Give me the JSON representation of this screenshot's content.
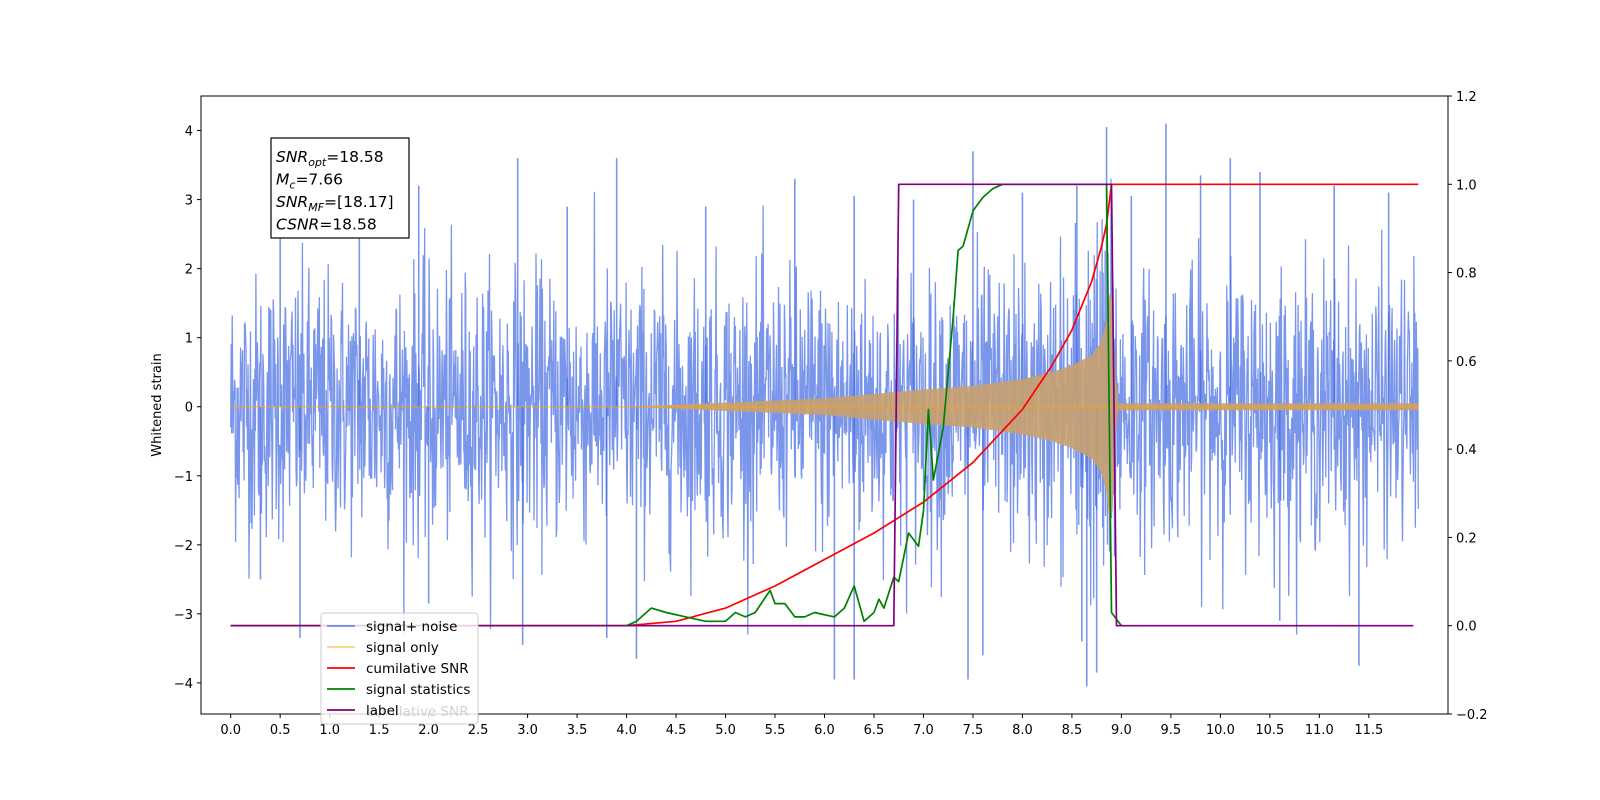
{
  "chart_data": {
    "type": "line",
    "ylabel": "Whitened strain",
    "x_ticks": [
      "0.0",
      "0.5",
      "1.0",
      "1.5",
      "2.0",
      "2.5",
      "3.0",
      "3.5",
      "4.0",
      "4.5",
      "5.0",
      "5.5",
      "6.0",
      "6.5",
      "7.0",
      "7.5",
      "8.0",
      "8.5",
      "9.0",
      "9.5",
      "10.0",
      "10.5",
      "11.0",
      "11.5"
    ],
    "xlim": [
      -0.3,
      12.3
    ],
    "left_axis": {
      "ylim": [
        -4.45,
        4.5
      ],
      "ticks": [
        4,
        3,
        2,
        1,
        0,
        -1,
        -2,
        -3,
        -4
      ],
      "tick_labels": [
        "4",
        "3",
        "2",
        "1",
        "0",
        "−1",
        "−2",
        "−3",
        "−4"
      ]
    },
    "right_axis": {
      "ylim": [
        -0.2,
        1.2
      ],
      "ticks": [
        1.2,
        1.0,
        0.8,
        0.6,
        0.4,
        0.2,
        0.0,
        -0.2
      ],
      "tick_labels": [
        "1.2",
        "1.0",
        "0.8",
        "0.6",
        "0.4",
        "0.2",
        "0.0",
        "−0.2"
      ]
    },
    "annotation": {
      "lines": [
        {
          "sym": "SNR",
          "sub": "opt",
          "val": "=18.58"
        },
        {
          "sym": "M",
          "sub": "c",
          "val": "=7.66"
        },
        {
          "sym": "SNR",
          "sub": "MF",
          "val": "=[18.17]"
        },
        {
          "sym": "CSNR",
          "sub": "",
          "val": "=18.58"
        }
      ]
    },
    "legend": {
      "position": "lower-left",
      "entries": [
        {
          "label": "signal+ noise",
          "color": "#4169e1"
        },
        {
          "label": "signal only",
          "color": "#ffa500"
        },
        {
          "label": "cumilative SNR",
          "color": "#ff0000"
        },
        {
          "label": "signal statistics",
          "color": "#008000"
        },
        {
          "label": "label",
          "color": "#800080"
        }
      ],
      "ghost_text": "cumilative SNR"
    },
    "series": [
      {
        "name": "signal+ noise",
        "color": "#4169e1",
        "opacity": 0.7,
        "axis": "left",
        "x_range": [
          0.0,
          12.0
        ],
        "noise_sigma": 1.0,
        "envelope_x": [
          0.0,
          4.0,
          6.0,
          7.0,
          7.5,
          8.0,
          8.3,
          8.5,
          8.7,
          8.8,
          8.85,
          8.9,
          8.95,
          12.0
        ],
        "envelope_y": [
          0.0,
          0.0,
          0.12,
          0.25,
          0.3,
          0.4,
          0.5,
          0.6,
          0.75,
          0.95,
          1.25,
          1.9,
          0.05,
          0.05
        ],
        "peaks": [
          [
            0.3,
            -2.5
          ],
          [
            0.5,
            2.8
          ],
          [
            0.7,
            -3.35
          ],
          [
            1.3,
            2.8
          ],
          [
            1.9,
            3.2
          ],
          [
            2.0,
            -2.85
          ],
          [
            2.9,
            3.6
          ],
          [
            2.95,
            -3.45
          ],
          [
            3.4,
            2.9
          ],
          [
            3.8,
            -3.35
          ],
          [
            3.9,
            3.6
          ],
          [
            4.1,
            -3.65
          ],
          [
            4.8,
            2.9
          ],
          [
            5.7,
            3.3
          ],
          [
            6.1,
            -3.95
          ],
          [
            6.3,
            3.05
          ],
          [
            6.3,
            -3.95
          ],
          [
            6.9,
            3.0
          ],
          [
            7.5,
            3.7
          ],
          [
            7.45,
            -3.95
          ],
          [
            7.6,
            -3.6
          ],
          [
            8.0,
            3.1
          ],
          [
            8.55,
            3.2
          ],
          [
            8.6,
            -3.4
          ],
          [
            8.65,
            -4.05
          ],
          [
            8.75,
            -3.85
          ],
          [
            8.85,
            4.05
          ],
          [
            9.1,
            3.05
          ],
          [
            9.45,
            4.1
          ],
          [
            9.8,
            3.35
          ],
          [
            10.1,
            3.6
          ],
          [
            10.4,
            3.4
          ],
          [
            10.6,
            -3.1
          ],
          [
            11.15,
            3.2
          ],
          [
            11.4,
            -3.75
          ],
          [
            11.7,
            3.1
          ]
        ]
      },
      {
        "name": "signal only",
        "color": "#ffa500",
        "opacity": 0.5,
        "axis": "left",
        "x_range": [
          0.0,
          12.0
        ],
        "envelope_x": [
          0.0,
          4.0,
          6.0,
          7.0,
          7.5,
          8.0,
          8.3,
          8.5,
          8.7,
          8.8,
          8.85,
          8.9,
          8.95,
          12.0
        ],
        "envelope_y": [
          0.0,
          0.0,
          0.12,
          0.25,
          0.3,
          0.4,
          0.5,
          0.6,
          0.75,
          0.95,
          1.25,
          1.9,
          0.05,
          0.05
        ]
      },
      {
        "name": "cumilative SNR",
        "color": "#ff0000",
        "axis": "right",
        "x": [
          0.0,
          4.0,
          4.5,
          5.0,
          5.5,
          6.0,
          6.5,
          7.0,
          7.5,
          8.0,
          8.3,
          8.5,
          8.7,
          8.8,
          8.85,
          8.9,
          8.95,
          9.0,
          12.0
        ],
        "y": [
          0.0,
          0.0,
          0.01,
          0.04,
          0.09,
          0.15,
          0.21,
          0.28,
          0.37,
          0.49,
          0.59,
          0.67,
          0.78,
          0.86,
          0.91,
          1.0,
          1.0,
          1.0,
          1.0
        ]
      },
      {
        "name": "signal statistics",
        "color": "#008000",
        "axis": "right",
        "x": [
          0.0,
          4.0,
          4.1,
          4.25,
          4.4,
          4.6,
          4.8,
          5.0,
          5.1,
          5.2,
          5.3,
          5.45,
          5.5,
          5.6,
          5.7,
          5.8,
          5.9,
          6.1,
          6.2,
          6.3,
          6.4,
          6.5,
          6.55,
          6.6,
          6.7,
          6.75,
          6.85,
          6.95,
          7.0,
          7.05,
          7.1,
          7.2,
          7.3,
          7.35,
          7.4,
          7.5,
          7.6,
          7.7,
          7.8,
          8.0,
          8.5,
          8.85,
          8.9,
          9.0
        ],
        "y": [
          0.0,
          0.0,
          0.01,
          0.04,
          0.03,
          0.02,
          0.01,
          0.01,
          0.03,
          0.02,
          0.03,
          0.08,
          0.05,
          0.05,
          0.02,
          0.02,
          0.03,
          0.02,
          0.04,
          0.09,
          0.01,
          0.03,
          0.06,
          0.04,
          0.11,
          0.1,
          0.21,
          0.18,
          0.26,
          0.49,
          0.33,
          0.45,
          0.7,
          0.85,
          0.86,
          0.94,
          0.97,
          0.99,
          1.0,
          1.0,
          1.0,
          1.0,
          0.03,
          0.0
        ]
      },
      {
        "name": "label",
        "color": "#800080",
        "axis": "right",
        "x": [
          0.0,
          6.7,
          6.75,
          8.9,
          8.95,
          11.95
        ],
        "y": [
          0.0,
          0.0,
          1.0,
          1.0,
          0.0,
          0.0
        ]
      }
    ]
  }
}
